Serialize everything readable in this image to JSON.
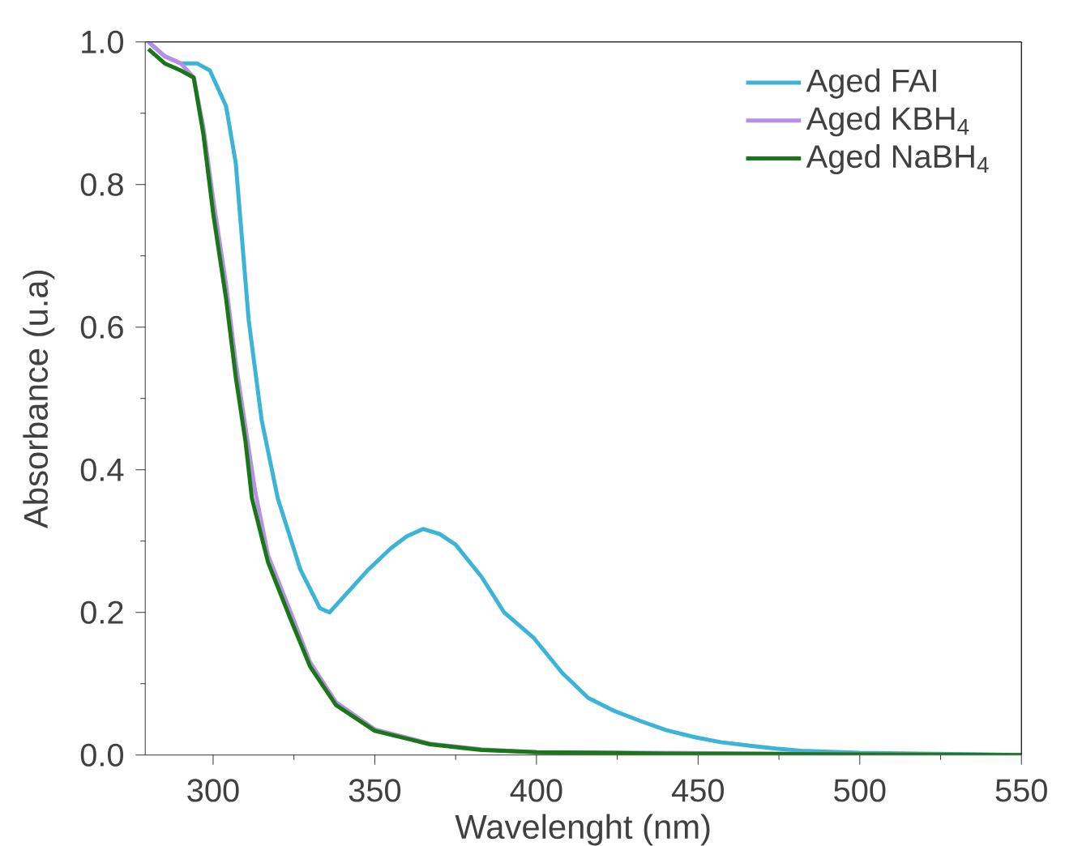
{
  "chart_data": {
    "type": "line",
    "xlabel": "Wavelenght (nm)",
    "ylabel": "Absorbance (u.a)",
    "xlim": [
      279,
      550
    ],
    "ylim": [
      0,
      1.0
    ],
    "xticks": [
      300,
      350,
      400,
      450,
      500,
      550
    ],
    "yticks": [
      {
        "value": 0,
        "label": "0.0"
      },
      0.2,
      0.4,
      0.6,
      0.8,
      {
        "value": 1.0,
        "label": "1.0"
      }
    ],
    "legend": "top right",
    "grid": false,
    "marker": "none",
    "line_style": "solid",
    "series": [
      {
        "name": "Aged FAI",
        "color": "#3cb4d8",
        "x": [
          280,
          285,
          290,
          295,
          299,
          304,
          307,
          311,
          315,
          320,
          327,
          333,
          336,
          342,
          348,
          355,
          360,
          365,
          370,
          375,
          383,
          390,
          399,
          408,
          416,
          424,
          432,
          440,
          449,
          457,
          466,
          474,
          482,
          500,
          518,
          535,
          550
        ],
        "values": [
          1.0,
          0.98,
          0.97,
          0.97,
          0.96,
          0.91,
          0.83,
          0.61,
          0.47,
          0.36,
          0.26,
          0.206,
          0.2,
          0.23,
          0.26,
          0.29,
          0.307,
          0.317,
          0.31,
          0.295,
          0.25,
          0.2,
          0.165,
          0.115,
          0.08,
          0.062,
          0.048,
          0.035,
          0.025,
          0.018,
          0.013,
          0.009,
          0.006,
          0.003,
          0.002,
          0.001,
          0.0
        ]
      },
      {
        "name": "Aged KBH$_{4}$",
        "color": "#b98ee6",
        "x": [
          280,
          285,
          290,
          294,
          297,
          300,
          304,
          307,
          310,
          313,
          317,
          324,
          330,
          338,
          350,
          367,
          383,
          400,
          440,
          550
        ],
        "values": [
          1.0,
          0.98,
          0.97,
          0.95,
          0.88,
          0.78,
          0.66,
          0.55,
          0.46,
          0.37,
          0.28,
          0.2,
          0.13,
          0.074,
          0.036,
          0.016,
          0.008,
          0.004,
          null,
          0.0
        ]
      },
      {
        "name": "Aged NaBH$_{4}$",
        "color": "#187818",
        "x": [
          280,
          285,
          290,
          294,
          297,
          300,
          304,
          307,
          310,
          312,
          317,
          324,
          330,
          338,
          350,
          367,
          383,
          400,
          440,
          550
        ],
        "values": [
          0.99,
          0.97,
          0.96,
          0.95,
          0.87,
          0.76,
          0.64,
          0.53,
          0.44,
          0.36,
          0.27,
          0.19,
          0.124,
          0.07,
          0.034,
          0.015,
          0.007,
          0.004,
          0.002,
          0.0
        ]
      }
    ]
  }
}
